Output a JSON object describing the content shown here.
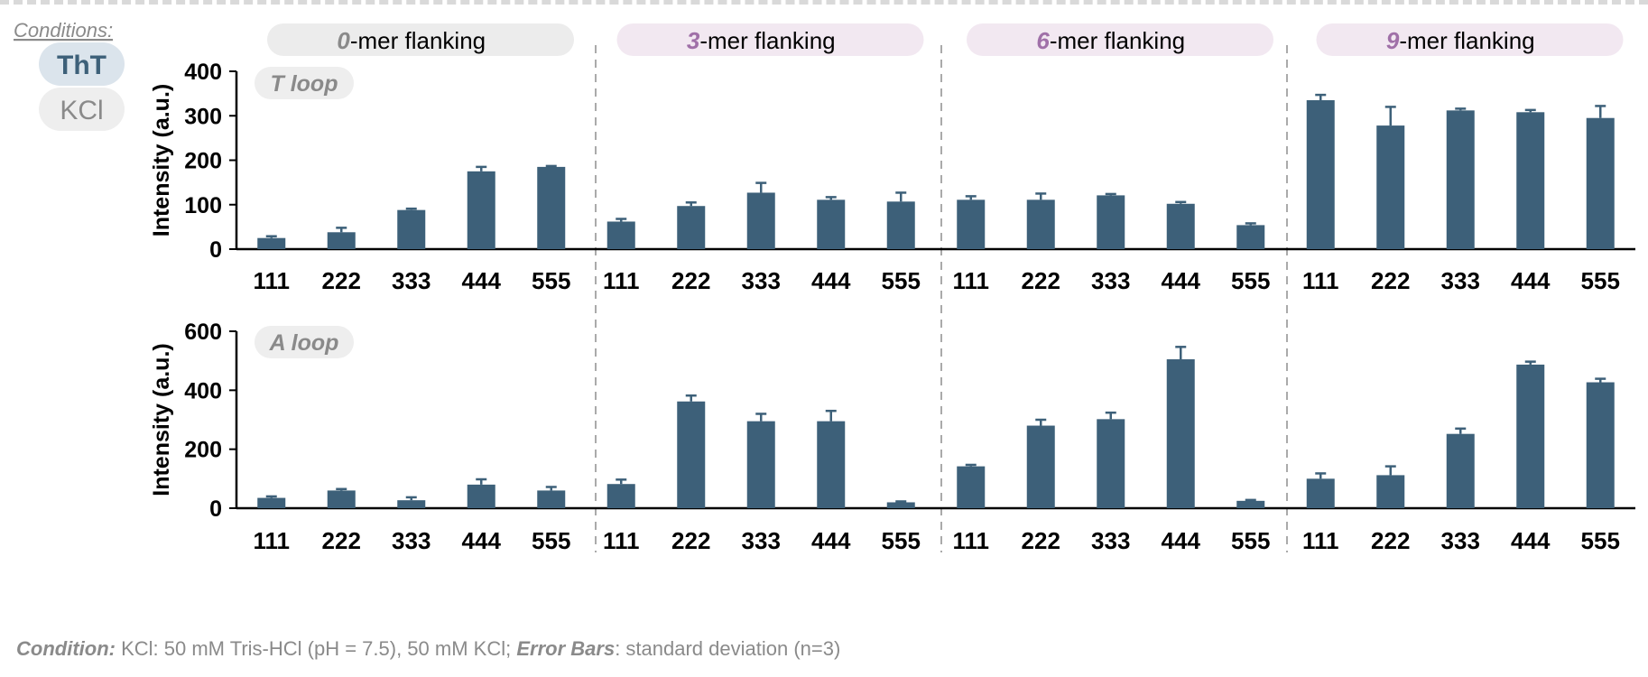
{
  "legend": {
    "title": "Conditions:",
    "items": [
      {
        "label": "ThT",
        "bg": "#dbe4ec",
        "color": "#3d6079"
      },
      {
        "label": "KCl",
        "bg": "#eeeeee",
        "color": "#8a8a8a"
      }
    ]
  },
  "footer": {
    "condition_label": "Condition:",
    "condition_text": "KCl: 50 mM Tris-HCl (pH = 7.5), 50 mM KCl;",
    "error_label": "Error Bars",
    "error_text": ": standard deviation (n=3)"
  },
  "colors": {
    "bar": "#3d6079",
    "group_header_plain_bg": "#ececec",
    "group_header_highlight_bg": "#f2e8f1",
    "group_header_number": "#a070a8",
    "group_header_zero": "#8a8a8a",
    "panel_tag_bg": "#eeeeee",
    "panel_tag_text": "#8a8a8a",
    "separator": "#aaaaaa"
  },
  "chart_data": [
    {
      "type": "bar",
      "tag": "T loop",
      "ylabel": "Intensity (a.u.)",
      "ylim": [
        0,
        400
      ],
      "yticks": [
        0,
        100,
        200,
        300,
        400
      ],
      "groups": [
        {
          "number": "0",
          "label": "-mer flanking",
          "categories": [
            "111",
            "222",
            "333",
            "444",
            "555"
          ],
          "values": [
            25,
            38,
            88,
            175,
            185
          ],
          "errors": [
            4,
            10,
            3,
            10,
            2
          ]
        },
        {
          "number": "3",
          "label": "-mer flanking",
          "categories": [
            "111",
            "222",
            "333",
            "444",
            "555"
          ],
          "values": [
            62,
            97,
            127,
            111,
            107
          ],
          "errors": [
            6,
            8,
            22,
            6,
            20
          ]
        },
        {
          "number": "6",
          "label": "-mer flanking",
          "categories": [
            "111",
            "222",
            "333",
            "444",
            "555"
          ],
          "values": [
            111,
            111,
            121,
            102,
            54
          ],
          "errors": [
            8,
            14,
            3,
            4,
            4
          ]
        },
        {
          "number": "9",
          "label": "-mer flanking",
          "categories": [
            "111",
            "222",
            "333",
            "444",
            "555"
          ],
          "values": [
            335,
            278,
            312,
            308,
            295
          ],
          "errors": [
            12,
            42,
            4,
            5,
            27
          ]
        }
      ]
    },
    {
      "type": "bar",
      "tag": "A loop",
      "ylabel": "Intensity (a.u.)",
      "ylim": [
        0,
        600
      ],
      "yticks": [
        0,
        200,
        400,
        600
      ],
      "groups": [
        {
          "number": "0",
          "label": "-mer flanking",
          "categories": [
            "111",
            "222",
            "333",
            "444",
            "555"
          ],
          "values": [
            35,
            60,
            27,
            80,
            60
          ],
          "errors": [
            5,
            5,
            10,
            18,
            12
          ]
        },
        {
          "number": "3",
          "label": "-mer flanking",
          "categories": [
            "111",
            "222",
            "333",
            "444",
            "555"
          ],
          "values": [
            82,
            362,
            295,
            295,
            20
          ],
          "errors": [
            15,
            20,
            25,
            35,
            3
          ]
        },
        {
          "number": "6",
          "label": "-mer flanking",
          "categories": [
            "111",
            "222",
            "333",
            "444",
            "555"
          ],
          "values": [
            142,
            280,
            302,
            505,
            25
          ],
          "errors": [
            5,
            20,
            22,
            42,
            3
          ]
        },
        {
          "number": "9",
          "label": "-mer flanking",
          "categories": [
            "111",
            "222",
            "333",
            "444",
            "555"
          ],
          "values": [
            100,
            112,
            252,
            487,
            427
          ],
          "errors": [
            18,
            30,
            18,
            10,
            12
          ]
        }
      ]
    }
  ]
}
